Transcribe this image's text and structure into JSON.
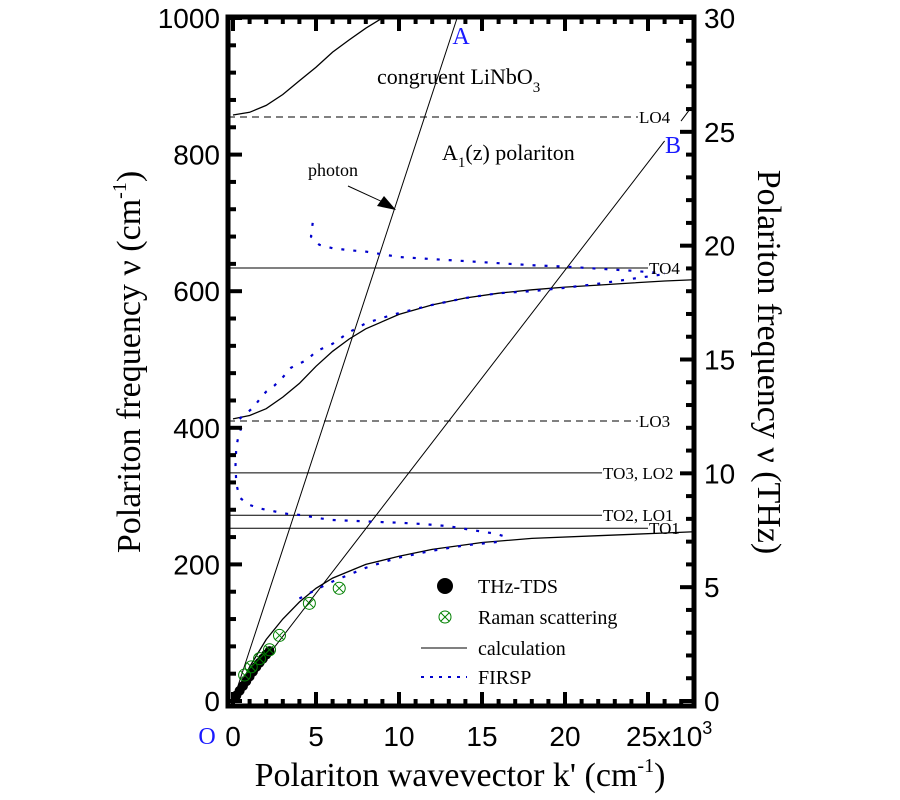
{
  "chart_data": {
    "type": "line",
    "title": "congruent LiNbO3 A1(z) polariton",
    "material_label": "congruent LiNbO",
    "material_sub": "3",
    "mode_label_pre": "A",
    "mode_label_sub": "1",
    "mode_label_post": "(z) polariton",
    "xlabel": "Polariton wavevector k' (cm",
    "xlabel_sup": "-1",
    "xlabel_end": ")",
    "ylabel_left": "Polariton frequency ν (cm",
    "ylabel_left_sup": "-1",
    "ylabel_left_end": ")",
    "ylabel_right": "Polariton frequency ν (THz)",
    "xlim": [
      0,
      28000
    ],
    "ylim_left": [
      0,
      1000
    ],
    "ylim_right": [
      0,
      30
    ],
    "x_ticks": [
      "0",
      "5",
      "10",
      "15",
      "20",
      "25x10"
    ],
    "x_ticks_values": [
      0,
      5000,
      10000,
      15000,
      20000,
      25000
    ],
    "x_exp_sup": "3",
    "y_left_ticks": [
      "0",
      "200",
      "400",
      "600",
      "800",
      "1000"
    ],
    "y_left_ticks_values": [
      0,
      200,
      400,
      600,
      800,
      1000
    ],
    "y_right_ticks": [
      "0",
      "5",
      "10",
      "15",
      "20",
      "25",
      "30"
    ],
    "y_right_ticks_values": [
      0,
      5,
      10,
      15,
      20,
      25,
      30
    ],
    "origin_label": "O",
    "point_labels": {
      "A": "A",
      "B": "B"
    },
    "annotation_photon": "photon",
    "phonon_lines": [
      {
        "label": "LO4",
        "value": 855,
        "style": "dashed"
      },
      {
        "label": "TO4",
        "value": 634,
        "style": "solid"
      },
      {
        "label": "LO3",
        "value": 410,
        "style": "dashed"
      },
      {
        "label": "TO3, LO2",
        "value": 334,
        "style": "solid"
      },
      {
        "label": "TO2, LO1",
        "value": 272,
        "style": "solid"
      },
      {
        "label": "TO1",
        "value": 253,
        "style": "solid"
      }
    ],
    "photon_lines": [
      {
        "name": "A",
        "x": [
          0,
          13500
        ],
        "y": [
          0,
          1000
        ]
      },
      {
        "name": "B",
        "x": [
          0,
          26000
        ],
        "y": [
          0,
          820
        ]
      }
    ],
    "series": [
      {
        "name": "calculation",
        "style": "solid",
        "color": "#000000",
        "branches": [
          {
            "x": [
              0,
              1000,
              2000,
              3000,
              4000,
              5000,
              6000,
              8000,
              10000,
              12000,
              15000,
              18000,
              22000,
              26000,
              28000
            ],
            "y": [
              0,
              50,
              90,
              120,
              145,
              165,
              180,
              200,
              212,
              222,
              232,
              238,
              242,
              246,
              248
            ]
          },
          {
            "x": [
              0,
              1000,
              2000,
              3000,
              4000,
              5000,
              6000,
              7000,
              8000,
              10000,
              12000,
              14000,
              16000,
              18000,
              20000,
              22000,
              24000,
              26000,
              28000
            ],
            "y": [
              413,
              418,
              428,
              445,
              465,
              490,
              512,
              530,
              545,
              566,
              580,
              590,
              597,
              602,
              606,
              609,
              612,
              615,
              617
            ]
          },
          {
            "x": [
              0,
              1000,
              2000,
              3000,
              4000,
              5000,
              6000,
              7000,
              8000,
              9000
            ],
            "y": [
              858,
              862,
              872,
              888,
              908,
              928,
              950,
              968,
              985,
              1000
            ]
          }
        ]
      },
      {
        "name": "FIRSP",
        "style": "dotted",
        "color": "#0000CC",
        "x": [
          4800,
          4700,
          5200,
          6000,
          7000,
          8000,
          9000,
          10000,
          12000,
          14000,
          16000,
          18000,
          20000,
          22000,
          24000,
          26000
        ],
        "y": [
          700,
          680,
          668,
          663,
          660,
          658,
          654,
          650,
          647,
          644,
          641,
          638,
          636,
          633,
          630,
          626
        ]
      },
      {
        "name": "FIRSP",
        "style": "dotted",
        "color": "#0000CC",
        "x": [
          400,
          700,
          1000,
          1300,
          1700,
          2000,
          2500,
          3000,
          3500,
          4000,
          4500,
          5000,
          6000,
          7000,
          8000,
          9000,
          10000,
          12000,
          14000,
          16000,
          18000,
          20000,
          22000,
          24000,
          26000
        ],
        "y": [
          413,
          420,
          425,
          432,
          445,
          453,
          462,
          474,
          488,
          494,
          500,
          512,
          523,
          540,
          553,
          561,
          568,
          580,
          590,
          597,
          600,
          605,
          611,
          618,
          625
        ]
      },
      {
        "name": "FIRSP",
        "style": "dotted",
        "color": "#0000CC",
        "x": [
          500,
          350,
          200,
          150,
          200,
          400,
          900,
          1600,
          2400,
          3300,
          4200,
          5100,
          6000,
          7000,
          8000,
          9000,
          10000,
          11500,
          13000,
          14500,
          15800,
          16500
        ],
        "y": [
          400,
          390,
          372,
          345,
          318,
          298,
          288,
          282,
          278,
          274,
          272,
          268,
          265,
          264,
          263,
          262,
          261,
          259,
          256,
          250,
          245,
          240
        ]
      },
      {
        "name": "FIRSP",
        "style": "dotted",
        "color": "#0000CC",
        "x": [
          4000,
          5000,
          6000,
          7000,
          8000,
          9000,
          10000,
          12000,
          14000,
          16000
        ],
        "y": [
          150,
          163,
          175,
          185,
          195,
          203,
          210,
          220,
          228,
          233
        ]
      },
      {
        "name": "THz-TDS",
        "style": "filled-circle",
        "color": "#000000",
        "x": [
          200,
          400,
          600,
          800,
          1000,
          1200,
          1400,
          1600,
          1800,
          2000,
          2200
        ],
        "y": [
          8,
          15,
          22,
          29,
          36,
          43,
          50,
          56,
          62,
          68,
          73
        ]
      },
      {
        "name": "Raman scattering",
        "style": "circle-x",
        "color": "#008000",
        "x": [
          700,
          1100,
          1600,
          2200,
          2800,
          4600,
          6400
        ],
        "y": [
          38,
          50,
          62,
          75,
          96,
          143,
          165
        ]
      }
    ],
    "legend": {
      "position": "bottom-right",
      "entries": [
        {
          "label": "THz-TDS",
          "marker": "filled-circle"
        },
        {
          "label": "Raman scattering",
          "marker": "circle-x"
        },
        {
          "label": "calculation",
          "marker": "solid-line"
        },
        {
          "label": "FIRSP",
          "marker": "dotted-line"
        }
      ]
    },
    "grid": false,
    "colors": {
      "accent_blue": "#0000CC",
      "raman_green": "#008000",
      "label_blue": "#1a1aff"
    }
  }
}
